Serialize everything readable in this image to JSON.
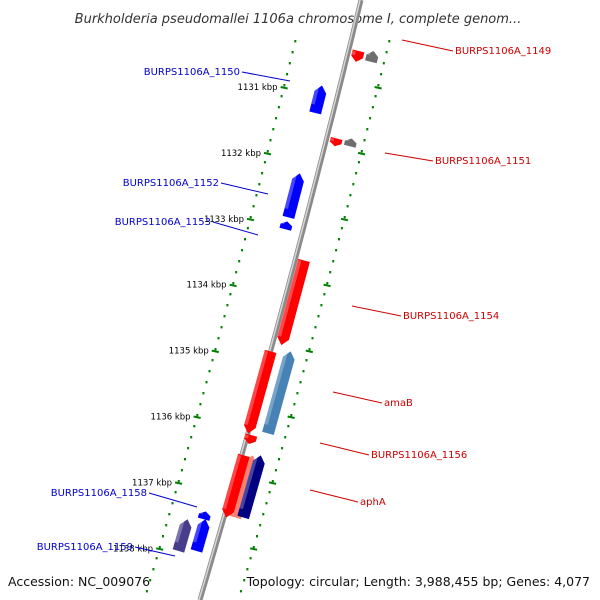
{
  "title": "Burkholderia pseudomallei 1106a chromosome I, complete genom...",
  "footer": {
    "accession": "Accession: NC_009076",
    "topology": "Topology: circular; Length: 3,988,455 bp; Genes: 4,077"
  },
  "colors": {
    "minus_strand_label": "#0000cc",
    "plus_strand_label": "#cc0000",
    "tick_dots": "#008000",
    "backbone": "#8a8a8a"
  },
  "scale": {
    "unit": "kbp",
    "ticks": [
      {
        "kbp": 1131,
        "label": "1131 kbp"
      },
      {
        "kbp": 1132,
        "label": "1132 kbp"
      },
      {
        "kbp": 1133,
        "label": "1133 kbp"
      },
      {
        "kbp": 1134,
        "label": "1134 kbp"
      },
      {
        "kbp": 1135,
        "label": "1135 kbp"
      },
      {
        "kbp": 1136,
        "label": "1136 kbp"
      },
      {
        "kbp": 1137,
        "label": "1137 kbp"
      },
      {
        "kbp": 1138,
        "label": "1138 kbp"
      }
    ]
  },
  "genes": [
    {
      "id": "g1150",
      "label": "BURPS1106A_1150",
      "strand": "minus",
      "color": "#0000ff",
      "start_kbp": 1130.97,
      "end_kbp": 1131.4
    },
    {
      "id": "g1152",
      "label": "BURPS1106A_1152",
      "strand": "minus",
      "color": "#0000ff",
      "start_kbp": 1132.3,
      "end_kbp": 1132.99
    },
    {
      "id": "g1153",
      "label": "BURPS1106A_1153",
      "strand": "minus",
      "color": "#0000ff",
      "start_kbp": 1133.07,
      "end_kbp": 1133.13
    },
    {
      "id": "g1158",
      "label": "BURPS1106A_1158",
      "strand": "minus",
      "color": "#0000ff",
      "start_kbp": 1137.45,
      "end_kbp": 1137.55
    },
    {
      "id": "g1159",
      "label": "BURPS1106A_1159",
      "strand": "minus",
      "color": "#0000ff",
      "start_kbp": 1137.55,
      "end_kbp": 1138.05
    },
    {
      "id": "g1149",
      "label": "BURPS1106A_1149",
      "strand": "plus",
      "color": "#ff0000",
      "start_kbp": 1130.45,
      "end_kbp": 1130.62
    },
    {
      "id": "g1151",
      "label": "BURPS1106A_1151",
      "strand": "plus",
      "color": "#ff0000",
      "start_kbp": 1131.78,
      "end_kbp": 1131.9
    },
    {
      "id": "g1154",
      "label": "BURPS1106A_1154",
      "strand": "plus",
      "color": "#ff0000",
      "start_kbp": 1133.61,
      "end_kbp": 1134.94
    },
    {
      "id": "gAmaB",
      "label": "amaB",
      "strand": "plus",
      "color": "#ff0000",
      "start_kbp": 1134.99,
      "end_kbp": 1136.28
    },
    {
      "id": "g1156",
      "label": "BURPS1106A_1156",
      "strand": "plus",
      "color": "#ff0000",
      "start_kbp": 1136.28,
      "end_kbp": 1136.42
    },
    {
      "id": "gAphA",
      "label": "aphA",
      "strand": "plus",
      "color": "#ff0000",
      "start_kbp": 1136.57,
      "end_kbp": 1137.55
    }
  ],
  "features": [
    {
      "id": "f-gray-1149",
      "strand": "minus",
      "color": "#6e6e6e",
      "start_kbp": 1130.45,
      "end_kbp": 1130.62
    },
    {
      "id": "f-gray-1151",
      "strand": "minus",
      "color": "#6e6e6e",
      "start_kbp": 1131.78,
      "end_kbp": 1131.9
    },
    {
      "id": "f-steel-amaB",
      "strand": "minus",
      "color": "#4682b4",
      "start_kbp": 1134.99,
      "end_kbp": 1136.28
    },
    {
      "id": "f-salmon-aphA",
      "strand": "minus",
      "color": "#fa8072",
      "start_kbp": 1136.57,
      "end_kbp": 1137.55
    },
    {
      "id": "f-navy-aphA",
      "strand": "minus",
      "color": "#000080",
      "start_kbp": 1136.57,
      "end_kbp": 1137.55
    },
    {
      "id": "f-slate-1159",
      "strand": "outer",
      "color": "#483d8b",
      "start_kbp": 1137.55,
      "end_kbp": 1138.05
    }
  ]
}
